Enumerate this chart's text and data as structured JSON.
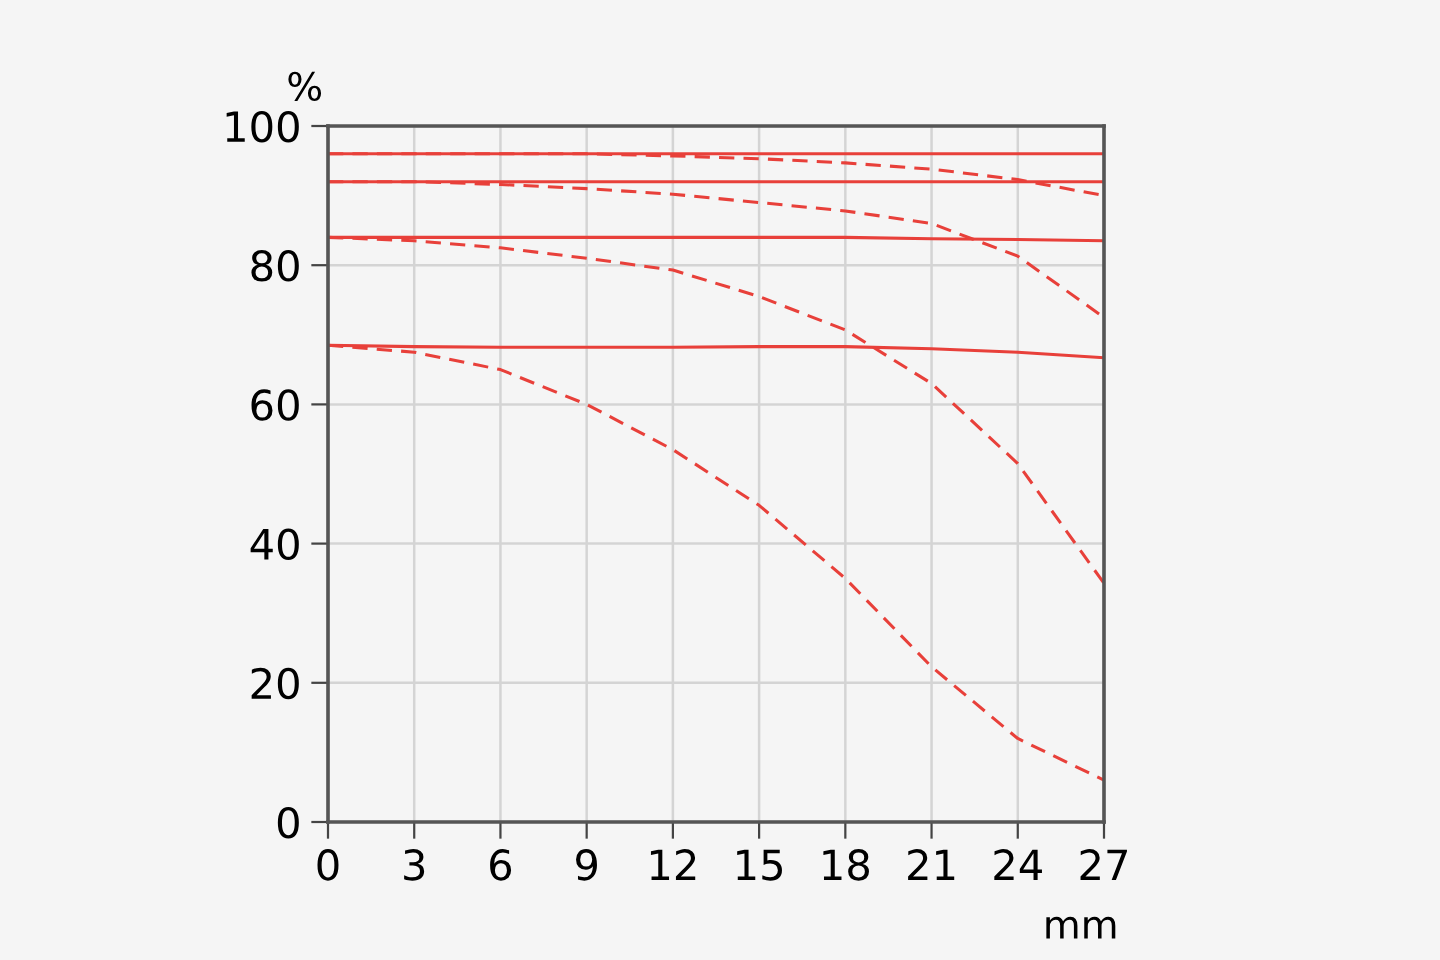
{
  "chart_data": {
    "type": "line",
    "xlabel": "mm",
    "ylabel": "%",
    "x": [
      0,
      3,
      6,
      9,
      12,
      15,
      18,
      21,
      24,
      27
    ],
    "series": [
      {
        "color": "#e8403a",
        "line_style": "solid",
        "values": [
          96,
          96,
          96,
          96,
          96,
          96,
          96,
          96,
          96,
          96
        ]
      },
      {
        "color": "#e8403a",
        "line_style": "solid",
        "values": [
          92,
          92,
          92,
          92,
          92,
          92,
          92,
          92,
          92,
          92
        ]
      },
      {
        "color": "#e8403a",
        "line_style": "solid",
        "values": [
          84,
          84,
          84,
          84,
          84,
          84,
          84,
          83.8,
          83.7,
          83.5
        ]
      },
      {
        "color": "#e8403a",
        "line_style": "solid",
        "values": [
          68.5,
          68.3,
          68.2,
          68.2,
          68.2,
          68.3,
          68.3,
          68,
          67.5,
          66.7
        ]
      },
      {
        "color": "#e8403a",
        "line_style": "dashed",
        "values": [
          96,
          96,
          96,
          96,
          95.7,
          95.3,
          94.7,
          93.8,
          92.3,
          90
        ]
      },
      {
        "color": "#e8403a",
        "line_style": "dashed",
        "values": [
          92,
          92,
          91.6,
          91,
          90.2,
          89,
          87.8,
          86,
          81.3,
          72.5
        ]
      },
      {
        "color": "#e8403a",
        "line_style": "dashed",
        "values": [
          84,
          83.5,
          82.5,
          81,
          79.3,
          75.5,
          70.7,
          63,
          51.5,
          34.3
        ]
      },
      {
        "color": "#e8403a",
        "line_style": "dashed",
        "values": [
          68.5,
          67.5,
          65,
          60,
          53.5,
          45.5,
          35,
          22.3,
          12,
          6
        ]
      }
    ],
    "xlim": [
      0,
      27
    ],
    "xticks": [
      0,
      3,
      6,
      9,
      12,
      15,
      18,
      21,
      24,
      27
    ],
    "ylim": [
      0,
      100
    ],
    "yticks": [
      0,
      20,
      40,
      60,
      80,
      100
    ],
    "grid": true,
    "marker": "none"
  }
}
